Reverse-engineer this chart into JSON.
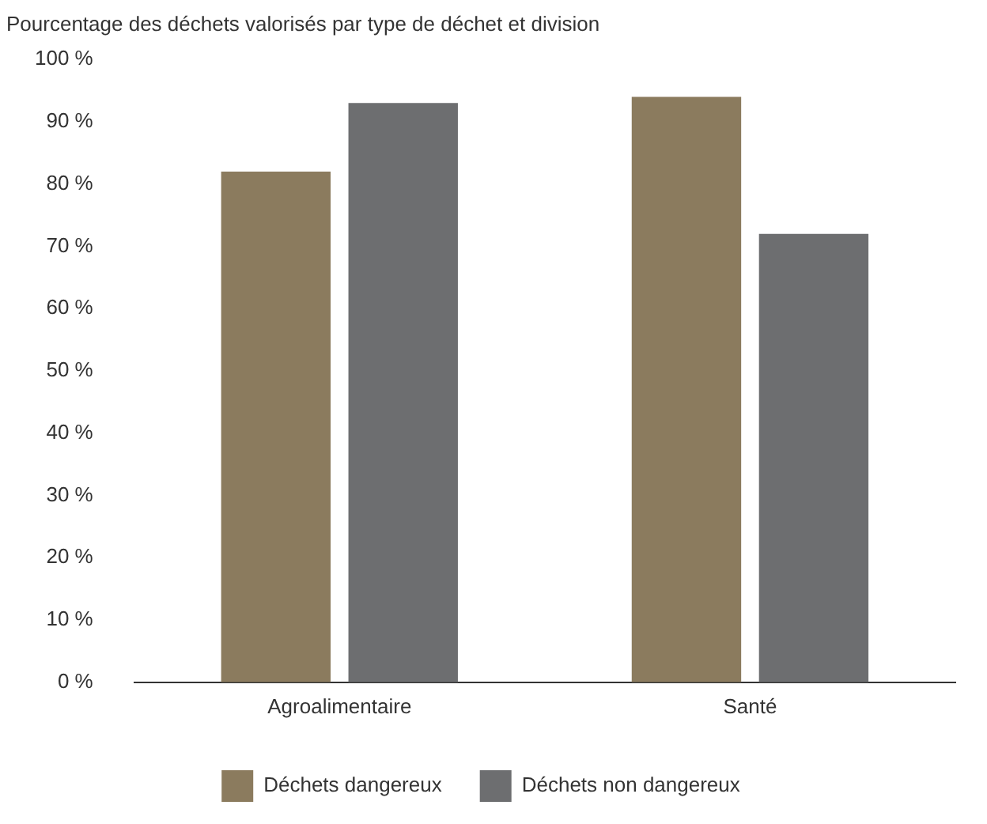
{
  "chart_data": {
    "type": "bar",
    "title": "Pourcentage des déchets valorisés par type de déchet et division",
    "categories": [
      "Agroalimentaire",
      "Santé"
    ],
    "series": [
      {
        "name": "Déchets dangereux",
        "color": "#8b7b5e",
        "values": [
          82,
          94
        ]
      },
      {
        "name": "Déchets non dangereux",
        "color": "#6d6e70",
        "values": [
          93,
          72
        ]
      }
    ],
    "ylim": [
      0,
      100
    ],
    "yticks": [
      {
        "value": 0,
        "label": "0 %"
      },
      {
        "value": 10,
        "label": "10 %"
      },
      {
        "value": 20,
        "label": "20 %"
      },
      {
        "value": 30,
        "label": "30 %"
      },
      {
        "value": 40,
        "label": "40 %"
      },
      {
        "value": 50,
        "label": "50 %"
      },
      {
        "value": 60,
        "label": "60 %"
      },
      {
        "value": 70,
        "label": "70 %"
      },
      {
        "value": 80,
        "label": "80 %"
      },
      {
        "value": 90,
        "label": "90 %"
      },
      {
        "value": 100,
        "label": "100 %"
      }
    ],
    "grid": false,
    "legend": "bottom"
  }
}
